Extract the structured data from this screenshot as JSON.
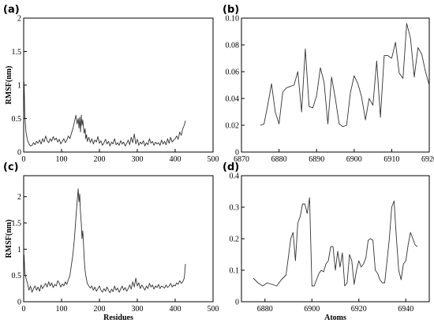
{
  "chart_data": [
    {
      "panel": "(a)",
      "type": "line",
      "xlabel": "",
      "ylabel": "RMSF(nm)",
      "xlim": [
        0,
        500
      ],
      "ylim": [
        0,
        2
      ],
      "xticks": [
        0,
        100,
        200,
        300,
        400,
        500
      ],
      "yticks": [
        0,
        0.5,
        1,
        1.5,
        2
      ],
      "series": [
        {
          "x": [
            1,
            3,
            6,
            10,
            14,
            18,
            22,
            26,
            30,
            34,
            38,
            42,
            46,
            50,
            54,
            58,
            62,
            66,
            70,
            74,
            78,
            82,
            86,
            90,
            94,
            98,
            102,
            106,
            110,
            114,
            118,
            122,
            126,
            130,
            134,
            138,
            141,
            144,
            146,
            148,
            150,
            152,
            154,
            156,
            158,
            160,
            162,
            164,
            166,
            168,
            172,
            176,
            180,
            184,
            188,
            192,
            196,
            200,
            204,
            208,
            212,
            216,
            220,
            224,
            228,
            232,
            236,
            240,
            244,
            248,
            252,
            256,
            260,
            264,
            268,
            272,
            276,
            280,
            284,
            288,
            292,
            296,
            300,
            304,
            308,
            312,
            316,
            320,
            324,
            328,
            332,
            336,
            340,
            344,
            348,
            352,
            356,
            360,
            364,
            368,
            372,
            376,
            380,
            384,
            388,
            392,
            396,
            400,
            404,
            408,
            412,
            416,
            420,
            424,
            427
          ],
          "y": [
            1.05,
            0.55,
            0.3,
            0.18,
            0.12,
            0.09,
            0.1,
            0.14,
            0.11,
            0.16,
            0.13,
            0.18,
            0.12,
            0.2,
            0.15,
            0.24,
            0.17,
            0.14,
            0.2,
            0.16,
            0.23,
            0.18,
            0.21,
            0.15,
            0.19,
            0.12,
            0.16,
            0.2,
            0.14,
            0.18,
            0.24,
            0.2,
            0.28,
            0.35,
            0.45,
            0.55,
            0.42,
            0.5,
            0.36,
            0.52,
            0.3,
            0.55,
            0.4,
            0.48,
            0.36,
            0.28,
            0.35,
            0.2,
            0.26,
            0.16,
            0.22,
            0.14,
            0.2,
            0.12,
            0.18,
            0.15,
            0.23,
            0.13,
            0.17,
            0.1,
            0.14,
            0.19,
            0.12,
            0.16,
            0.09,
            0.15,
            0.12,
            0.2,
            0.11,
            0.14,
            0.1,
            0.17,
            0.12,
            0.15,
            0.09,
            0.13,
            0.18,
            0.11,
            0.22,
            0.14,
            0.27,
            0.12,
            0.19,
            0.1,
            0.15,
            0.12,
            0.17,
            0.09,
            0.14,
            0.11,
            0.2,
            0.13,
            0.16,
            0.1,
            0.15,
            0.12,
            0.14,
            0.1,
            0.18,
            0.12,
            0.16,
            0.11,
            0.2,
            0.13,
            0.22,
            0.15,
            0.18,
            0.2,
            0.24,
            0.19,
            0.3,
            0.25,
            0.35,
            0.4,
            0.47
          ]
        }
      ]
    },
    {
      "panel": "(b)",
      "type": "line",
      "xlabel": "",
      "ylabel": "",
      "xlim": [
        6870,
        6920
      ],
      "ylim": [
        0,
        0.1
      ],
      "xticks": [
        6870,
        6880,
        6890,
        6900,
        6910,
        6920
      ],
      "yticks": [
        0,
        0.02,
        0.04,
        0.06,
        0.08,
        0.1
      ],
      "series": [
        {
          "x": [
            6875,
            6876,
            6877,
            6878,
            6879,
            6880,
            6881,
            6882,
            6883,
            6884,
            6885,
            6886,
            6887,
            6888,
            6889,
            6890,
            6891,
            6892,
            6893,
            6894,
            6895,
            6896,
            6897,
            6898,
            6899,
            6900,
            6901,
            6902,
            6903,
            6904,
            6905,
            6906,
            6907,
            6908,
            6909,
            6910,
            6911,
            6912,
            6913,
            6914,
            6915,
            6916,
            6917,
            6918,
            6919,
            6920
          ],
          "y": [
            0.02,
            0.021,
            0.035,
            0.051,
            0.03,
            0.021,
            0.045,
            0.048,
            0.049,
            0.05,
            0.06,
            0.03,
            0.077,
            0.034,
            0.033,
            0.042,
            0.063,
            0.052,
            0.021,
            0.056,
            0.04,
            0.021,
            0.019,
            0.02,
            0.044,
            0.057,
            0.051,
            0.041,
            0.024,
            0.04,
            0.035,
            0.068,
            0.026,
            0.072,
            0.072,
            0.07,
            0.082,
            0.059,
            0.055,
            0.096,
            0.085,
            0.056,
            0.078,
            0.073,
            0.06,
            0.05
          ]
        }
      ]
    },
    {
      "panel": "(c)",
      "type": "line",
      "xlabel": "Residues",
      "ylabel": "RMSF(nm)",
      "xlim": [
        0,
        500
      ],
      "ylim": [
        0,
        2.4
      ],
      "xticks": [
        0,
        100,
        200,
        300,
        400,
        500
      ],
      "yticks": [
        0,
        0.5,
        1,
        1.5,
        2
      ],
      "series": [
        {
          "x": [
            1,
            3,
            6,
            10,
            14,
            18,
            22,
            26,
            30,
            34,
            38,
            42,
            46,
            50,
            54,
            58,
            62,
            66,
            70,
            74,
            78,
            82,
            86,
            90,
            94,
            98,
            102,
            106,
            110,
            114,
            118,
            122,
            126,
            130,
            134,
            138,
            141,
            144,
            146,
            148,
            150,
            152,
            154,
            156,
            158,
            160,
            162,
            164,
            166,
            168,
            172,
            176,
            180,
            184,
            188,
            192,
            196,
            200,
            204,
            208,
            212,
            216,
            220,
            224,
            228,
            232,
            236,
            240,
            244,
            248,
            252,
            256,
            260,
            264,
            268,
            272,
            276,
            280,
            284,
            288,
            292,
            296,
            300,
            304,
            308,
            312,
            316,
            320,
            324,
            328,
            332,
            336,
            340,
            344,
            348,
            352,
            356,
            360,
            364,
            368,
            372,
            376,
            380,
            384,
            388,
            392,
            396,
            400,
            404,
            408,
            412,
            416,
            420,
            424,
            427
          ],
          "y": [
            0.9,
            0.55,
            0.45,
            0.35,
            0.22,
            0.3,
            0.18,
            0.25,
            0.3,
            0.22,
            0.28,
            0.2,
            0.32,
            0.25,
            0.3,
            0.35,
            0.28,
            0.38,
            0.3,
            0.36,
            0.27,
            0.33,
            0.3,
            0.4,
            0.35,
            0.28,
            0.34,
            0.3,
            0.38,
            0.33,
            0.42,
            0.5,
            0.7,
            0.9,
            1.2,
            1.6,
            1.9,
            2.15,
            1.9,
            2.05,
            1.7,
            1.5,
            1.2,
            1.35,
            1.1,
            0.8,
            0.6,
            0.5,
            0.42,
            0.35,
            0.3,
            0.26,
            0.3,
            0.22,
            0.28,
            0.2,
            0.25,
            0.3,
            0.22,
            0.18,
            0.25,
            0.2,
            0.28,
            0.22,
            0.17,
            0.24,
            0.19,
            0.3,
            0.22,
            0.26,
            0.18,
            0.24,
            0.3,
            0.22,
            0.27,
            0.2,
            0.25,
            0.32,
            0.24,
            0.38,
            0.28,
            0.45,
            0.3,
            0.36,
            0.25,
            0.32,
            0.27,
            0.22,
            0.3,
            0.25,
            0.35,
            0.28,
            0.32,
            0.24,
            0.3,
            0.27,
            0.33,
            0.25,
            0.3,
            0.28,
            0.26,
            0.32,
            0.27,
            0.3,
            0.35,
            0.28,
            0.32,
            0.3,
            0.36,
            0.33,
            0.4,
            0.35,
            0.38,
            0.45,
            0.72
          ]
        }
      ]
    },
    {
      "panel": "(d)",
      "type": "line",
      "xlabel": "Atoms",
      "ylabel": "",
      "xlim": [
        6870,
        6950
      ],
      "ylim": [
        0,
        0.4
      ],
      "xticks": [
        6880,
        6900,
        6920,
        6940
      ],
      "yticks": [
        0,
        0.1,
        0.2,
        0.3,
        0.4
      ],
      "series": [
        {
          "x": [
            6875,
            6877,
            6879,
            6881,
            6883,
            6885,
            6887,
            6889,
            6891,
            6892,
            6893,
            6894,
            6895,
            6896,
            6897,
            6898,
            6899,
            6900,
            6901,
            6902,
            6903,
            6904,
            6905,
            6906,
            6907,
            6908,
            6909,
            6910,
            6911,
            6912,
            6913,
            6914,
            6915,
            6916,
            6917,
            6918,
            6919,
            6920,
            6921,
            6922,
            6923,
            6924,
            6925,
            6926,
            6927,
            6928,
            6929,
            6930,
            6931,
            6932,
            6933,
            6934,
            6935,
            6936,
            6937,
            6938,
            6939,
            6940,
            6941,
            6942,
            6943,
            6944,
            6945
          ],
          "y": [
            0.075,
            0.06,
            0.05,
            0.06,
            0.055,
            0.05,
            0.07,
            0.085,
            0.2,
            0.22,
            0.13,
            0.25,
            0.27,
            0.31,
            0.31,
            0.28,
            0.33,
            0.05,
            0.05,
            0.07,
            0.09,
            0.1,
            0.095,
            0.12,
            0.13,
            0.175,
            0.175,
            0.1,
            0.16,
            0.11,
            0.155,
            0.05,
            0.06,
            0.15,
            0.13,
            0.055,
            0.1,
            0.13,
            0.11,
            0.12,
            0.14,
            0.195,
            0.2,
            0.195,
            0.1,
            0.09,
            0.07,
            0.06,
            0.06,
            0.13,
            0.2,
            0.3,
            0.32,
            0.2,
            0.1,
            0.07,
            0.12,
            0.13,
            0.18,
            0.22,
            0.2,
            0.18,
            0.175
          ]
        }
      ]
    }
  ]
}
